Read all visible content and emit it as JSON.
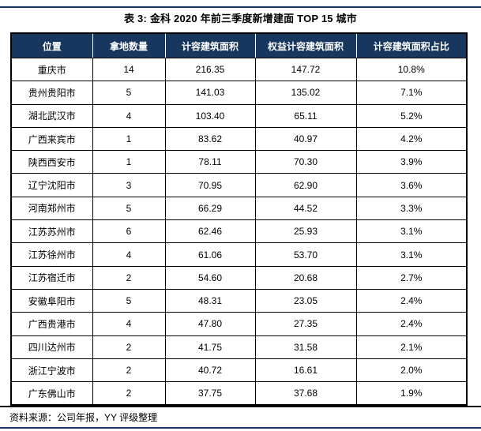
{
  "page": {
    "title": "表 3: 金科 2020 年前三季度新增建面 TOP 15 城市",
    "source_note": "资料来源：公司年报，YY 评级整理"
  },
  "colors": {
    "header_bg": "#17375E",
    "header_text": "#FFFFFF",
    "rule": "#17375E",
    "cell_border": "#000000",
    "body_text": "#000000"
  },
  "table": {
    "columns": [
      "位置",
      "拿地数量",
      "计容建筑面积",
      "权益计容建筑面积",
      "计容建筑面积占比"
    ],
    "rows": [
      [
        "重庆市",
        "14",
        "216.35",
        "147.72",
        "10.8%"
      ],
      [
        "贵州贵阳市",
        "5",
        "141.03",
        "135.02",
        "7.1%"
      ],
      [
        "湖北武汉市",
        "4",
        "103.40",
        "65.11",
        "5.2%"
      ],
      [
        "广西来宾市",
        "1",
        "83.62",
        "40.97",
        "4.2%"
      ],
      [
        "陕西西安市",
        "1",
        "78.11",
        "70.30",
        "3.9%"
      ],
      [
        "辽宁沈阳市",
        "3",
        "70.95",
        "62.90",
        "3.6%"
      ],
      [
        "河南郑州市",
        "5",
        "66.29",
        "44.52",
        "3.3%"
      ],
      [
        "江苏苏州市",
        "6",
        "62.46",
        "25.93",
        "3.1%"
      ],
      [
        "江苏徐州市",
        "4",
        "61.06",
        "53.70",
        "3.1%"
      ],
      [
        "江苏宿迁市",
        "2",
        "54.60",
        "20.68",
        "2.7%"
      ],
      [
        "安徽阜阳市",
        "5",
        "48.31",
        "23.05",
        "2.4%"
      ],
      [
        "广西贵港市",
        "4",
        "47.80",
        "27.35",
        "2.4%"
      ],
      [
        "四川达州市",
        "2",
        "41.75",
        "31.58",
        "2.1%"
      ],
      [
        "浙江宁波市",
        "2",
        "40.72",
        "16.61",
        "2.0%"
      ],
      [
        "广东佛山市",
        "2",
        "37.75",
        "37.68",
        "1.9%"
      ]
    ]
  }
}
